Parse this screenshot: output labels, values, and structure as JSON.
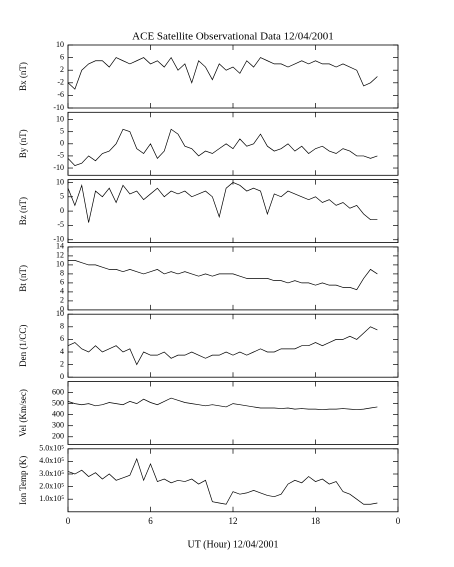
{
  "title": "ACE Satellite Observational Data   12/04/2001",
  "x_label": "UT (Hour)  12/04/2001",
  "chart_data": [
    {
      "type": "line",
      "y_label": "Bx (nT)",
      "ylim": [
        -10,
        10
      ],
      "yticks": [
        -10,
        -6,
        -2,
        2,
        6,
        10
      ],
      "xlim": [
        0,
        24
      ],
      "xticks": [
        0,
        6,
        12,
        18,
        {
          "value": 24,
          "label": "0"
        }
      ],
      "x": [
        0,
        0.5,
        1,
        1.5,
        2,
        2.5,
        3,
        3.5,
        4,
        4.5,
        5,
        5.5,
        6,
        6.5,
        7,
        7.5,
        8,
        8.5,
        9,
        9.5,
        10,
        10.5,
        11,
        11.5,
        12,
        12.5,
        13,
        13.5,
        14,
        14.5,
        15,
        15.5,
        16,
        16.5,
        17,
        17.5,
        18,
        18.5,
        19,
        19.5,
        20,
        20.5,
        21,
        21.5,
        22,
        22.5
      ],
      "series": [
        {
          "color": "#000000",
          "values": [
            -2,
            -4,
            2,
            4,
            5,
            5,
            3,
            6,
            5,
            4,
            5,
            6,
            4,
            5,
            3,
            6,
            2,
            4,
            -2,
            5,
            3,
            -1,
            4,
            2,
            3,
            1,
            5,
            3,
            6,
            5,
            4,
            4,
            3,
            4,
            5,
            4,
            5,
            4,
            4,
            3,
            4,
            3,
            2,
            -3,
            -2,
            0
          ]
        }
      ]
    },
    {
      "type": "line",
      "y_label": "By (nT)",
      "ylim": [
        -13,
        13
      ],
      "yticks": [
        -10,
        -5,
        0,
        5,
        10
      ],
      "xlim": [
        0,
        24
      ],
      "xticks": [
        0,
        6,
        12,
        18,
        {
          "value": 24,
          "label": "0"
        }
      ],
      "x": [
        0,
        0.5,
        1,
        1.5,
        2,
        2.5,
        3,
        3.5,
        4,
        4.5,
        5,
        5.5,
        6,
        6.5,
        7,
        7.5,
        8,
        8.5,
        9,
        9.5,
        10,
        10.5,
        11,
        11.5,
        12,
        12.5,
        13,
        13.5,
        14,
        14.5,
        15,
        15.5,
        16,
        16.5,
        17,
        17.5,
        18,
        18.5,
        19,
        19.5,
        20,
        20.5,
        21,
        21.5,
        22,
        22.5
      ],
      "series": [
        {
          "color": "#000000",
          "values": [
            -6,
            -9,
            -8,
            -5,
            -7,
            -4,
            -3,
            0,
            6,
            5,
            -2,
            -4,
            0,
            -6,
            -3,
            6,
            4,
            -1,
            -2,
            -5,
            -3,
            -4,
            -2,
            0,
            -2,
            2,
            -1,
            0,
            4,
            -1,
            -3,
            -2,
            0,
            -3,
            -1,
            -4,
            -2,
            -1,
            -3,
            -4,
            -2,
            -3,
            -5,
            -5,
            -6,
            -5
          ]
        }
      ]
    },
    {
      "type": "line",
      "y_label": "Bz (nT)",
      "ylim": [
        -11,
        11
      ],
      "yticks": [
        -10,
        -5,
        0,
        5,
        10
      ],
      "xlim": [
        0,
        24
      ],
      "xticks": [
        0,
        6,
        12,
        18,
        {
          "value": 24,
          "label": "0"
        }
      ],
      "x": [
        0,
        0.5,
        1,
        1.5,
        2,
        2.5,
        3,
        3.5,
        4,
        4.5,
        5,
        5.5,
        6,
        6.5,
        7,
        7.5,
        8,
        8.5,
        9,
        9.5,
        10,
        10.5,
        11,
        11.5,
        12,
        12.5,
        13,
        13.5,
        14,
        14.5,
        15,
        15.5,
        16,
        16.5,
        17,
        17.5,
        18,
        18.5,
        19,
        19.5,
        20,
        20.5,
        21,
        21.5,
        22,
        22.5
      ],
      "series": [
        {
          "color": "#000000",
          "values": [
            8,
            2,
            9,
            -4,
            7,
            5,
            8,
            3,
            9,
            6,
            7,
            4,
            6,
            8,
            5,
            7,
            6,
            7,
            5,
            6,
            7,
            5,
            -2,
            8,
            10,
            9,
            7,
            8,
            7,
            -1,
            6,
            5,
            7,
            6,
            5,
            4,
            5,
            3,
            4,
            2,
            3,
            1,
            2,
            -1,
            -3,
            -3
          ]
        }
      ]
    },
    {
      "type": "line",
      "y_label": "Bt (nT)",
      "ylim": [
        0,
        14
      ],
      "yticks": [
        0,
        2,
        4,
        6,
        8,
        10,
        12,
        14
      ],
      "xlim": [
        0,
        24
      ],
      "xticks": [
        0,
        6,
        12,
        18,
        {
          "value": 24,
          "label": "0"
        }
      ],
      "x": [
        0,
        0.5,
        1,
        1.5,
        2,
        2.5,
        3,
        3.5,
        4,
        4.5,
        5,
        5.5,
        6,
        6.5,
        7,
        7.5,
        8,
        8.5,
        9,
        9.5,
        10,
        10.5,
        11,
        11.5,
        12,
        12.5,
        13,
        13.5,
        14,
        14.5,
        15,
        15.5,
        16,
        16.5,
        17,
        17.5,
        18,
        18.5,
        19,
        19.5,
        20,
        20.5,
        21,
        21.5,
        22,
        22.5
      ],
      "series": [
        {
          "color": "#000000",
          "values": [
            11,
            11,
            10.5,
            10,
            10,
            9.5,
            9,
            9,
            8.5,
            9,
            8.5,
            8,
            8.5,
            9,
            8,
            8.5,
            8,
            8.5,
            8,
            7.5,
            8,
            7.5,
            8,
            8,
            8,
            7.5,
            7,
            7,
            7,
            7,
            6.5,
            6.5,
            6,
            6.5,
            6,
            6,
            5.5,
            6,
            5.5,
            5.5,
            5,
            5,
            4.5,
            7,
            9,
            8
          ]
        }
      ]
    },
    {
      "type": "line",
      "y_label": "Den (1/CC)",
      "ylim": [
        0,
        10
      ],
      "yticks": [
        0,
        2,
        4,
        6,
        8,
        10
      ],
      "xlim": [
        0,
        24
      ],
      "xticks": [
        0,
        6,
        12,
        18,
        {
          "value": 24,
          "label": "0"
        }
      ],
      "x": [
        0,
        0.5,
        1,
        1.5,
        2,
        2.5,
        3,
        3.5,
        4,
        4.5,
        5,
        5.5,
        6,
        6.5,
        7,
        7.5,
        8,
        8.5,
        9,
        9.5,
        10,
        10.5,
        11,
        11.5,
        12,
        12.5,
        13,
        13.5,
        14,
        14.5,
        15,
        15.5,
        16,
        16.5,
        17,
        17.5,
        18,
        18.5,
        19,
        19.5,
        20,
        20.5,
        21,
        21.5,
        22,
        22.5
      ],
      "series": [
        {
          "color": "#000000",
          "values": [
            5,
            5.5,
            4.5,
            4,
            5,
            4,
            4.5,
            5,
            4,
            4.5,
            2,
            4,
            3.5,
            3.5,
            4,
            3,
            3.5,
            3.5,
            4,
            3.5,
            3,
            3.5,
            3.5,
            4,
            3.5,
            4,
            3.5,
            4,
            4.5,
            4,
            4,
            4.5,
            4.5,
            4.5,
            5,
            5,
            5.5,
            5,
            5.5,
            6,
            6,
            6.5,
            6,
            7,
            8,
            7.5
          ]
        }
      ]
    },
    {
      "type": "line",
      "y_label": "Vel (Km/sec)",
      "ylim": [
        130,
        700
      ],
      "yticks": [
        200,
        300,
        400,
        500,
        600
      ],
      "xlim": [
        0,
        24
      ],
      "xticks": [
        0,
        6,
        12,
        18,
        {
          "value": 24,
          "label": "0"
        }
      ],
      "x": [
        0,
        0.5,
        1,
        1.5,
        2,
        2.5,
        3,
        3.5,
        4,
        4.5,
        5,
        5.5,
        6,
        6.5,
        7,
        7.5,
        8,
        8.5,
        9,
        9.5,
        10,
        10.5,
        11,
        11.5,
        12,
        12.5,
        13,
        13.5,
        14,
        14.5,
        15,
        15.5,
        16,
        16.5,
        17,
        17.5,
        18,
        18.5,
        19,
        19.5,
        20,
        20.5,
        21,
        21.5,
        22,
        22.5
      ],
      "series": [
        {
          "color": "#000000",
          "values": [
            520,
            500,
            490,
            500,
            480,
            490,
            510,
            500,
            490,
            520,
            500,
            540,
            510,
            490,
            520,
            550,
            530,
            510,
            500,
            490,
            480,
            490,
            480,
            470,
            500,
            490,
            480,
            470,
            460,
            460,
            460,
            455,
            460,
            450,
            455,
            450,
            450,
            445,
            450,
            450,
            455,
            450,
            445,
            450,
            460,
            470
          ]
        }
      ]
    },
    {
      "type": "line",
      "y_label": "Ion Temp (K)",
      "ylim": [
        0,
        500000
      ],
      "yticks": [
        {
          "value": 100000,
          "label": "1.0x10⁵"
        },
        {
          "value": 200000,
          "label": "2.0x10⁵"
        },
        {
          "value": 300000,
          "label": "3.0x10⁵"
        },
        {
          "value": 400000,
          "label": "4.0x10⁵"
        },
        {
          "value": 500000,
          "label": "5.0x10⁵"
        }
      ],
      "xlim": [
        0,
        24
      ],
      "xticks": [
        0,
        6,
        12,
        18,
        {
          "value": 24,
          "label": "0"
        }
      ],
      "x": [
        0,
        0.5,
        1,
        1.5,
        2,
        2.5,
        3,
        3.5,
        4,
        4.5,
        5,
        5.5,
        6,
        6.5,
        7,
        7.5,
        8,
        8.5,
        9,
        9.5,
        10,
        10.5,
        11,
        11.5,
        12,
        12.5,
        13,
        13.5,
        14,
        14.5,
        15,
        15.5,
        16,
        16.5,
        17,
        17.5,
        18,
        18.5,
        19,
        19.5,
        20,
        20.5,
        21,
        21.5,
        22,
        22.5
      ],
      "series": [
        {
          "color": "#000000",
          "values": [
            320000,
            300000,
            330000,
            280000,
            310000,
            260000,
            300000,
            250000,
            270000,
            290000,
            420000,
            250000,
            380000,
            240000,
            260000,
            230000,
            250000,
            240000,
            260000,
            220000,
            250000,
            80000,
            70000,
            60000,
            160000,
            140000,
            150000,
            170000,
            150000,
            130000,
            120000,
            140000,
            220000,
            250000,
            230000,
            280000,
            240000,
            260000,
            220000,
            240000,
            160000,
            140000,
            100000,
            60000,
            60000,
            70000
          ]
        }
      ]
    }
  ]
}
